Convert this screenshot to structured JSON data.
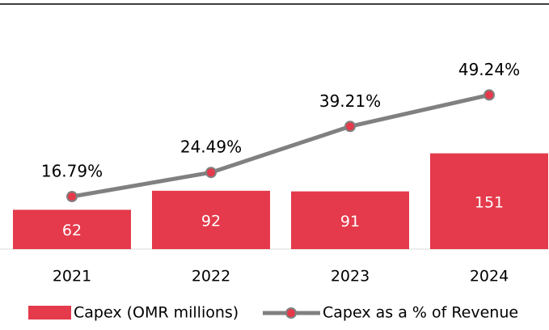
{
  "chart_data": {
    "type": "bar",
    "categories": [
      "2021",
      "2022",
      "2023",
      "2024"
    ],
    "ylim": [
      0,
      380
    ],
    "y2lim": [
      0,
      77
    ],
    "series": [
      {
        "name": "Capex (OMR millions)",
        "type": "bar",
        "color": "#e43a4b",
        "values": [
          62,
          92,
          91,
          151
        ]
      },
      {
        "name": "Capex as a % of Revenue",
        "type": "line",
        "axis": "y2",
        "color": "#808080",
        "marker_color": "#e43a4b",
        "values": [
          16.79,
          24.49,
          39.21,
          49.24
        ],
        "value_labels": [
          "16.79%",
          "24.49%",
          "39.21%",
          "49.24%"
        ]
      }
    ]
  }
}
